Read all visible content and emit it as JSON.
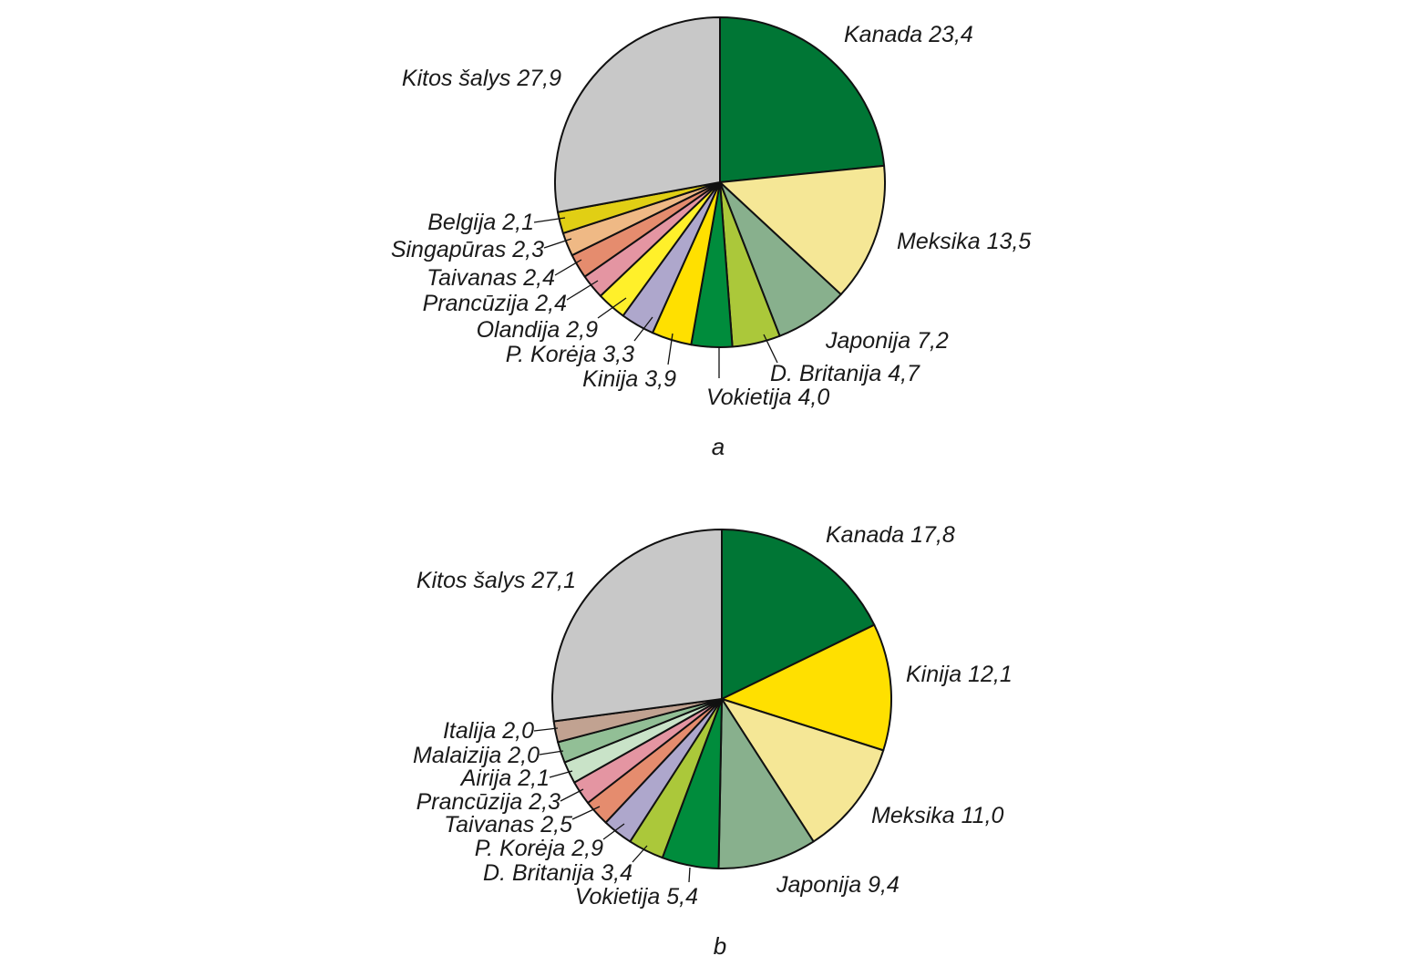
{
  "chart_data": [
    {
      "type": "pie",
      "caption": "a",
      "start": "12 o'clock",
      "direction": "clockwise",
      "slices": [
        {
          "name": "Kanada",
          "value": 23.4,
          "label": "Kanada 23,4",
          "color": "#007635"
        },
        {
          "name": "Meksika",
          "value": 13.5,
          "label": "Meksika 13,5",
          "color": "#f5e796"
        },
        {
          "name": "Japonija",
          "value": 7.2,
          "label": "Japonija 7,2",
          "color": "#88b08d"
        },
        {
          "name": "D. Britanija",
          "value": 4.7,
          "label": "D. Britanija 4,7",
          "color": "#abc83a"
        },
        {
          "name": "Vokietija",
          "value": 4.0,
          "label": "Vokietija 4,0",
          "color": "#008c3c"
        },
        {
          "name": "Kinija",
          "value": 3.9,
          "label": "Kinija 3,9",
          "color": "#ffe000"
        },
        {
          "name": "P. Korėja",
          "value": 3.3,
          "label": "P. Korėja 3,3",
          "color": "#aea7cc"
        },
        {
          "name": "Olandija",
          "value": 2.9,
          "label": "Olandija 2,9",
          "color": "#fff02a"
        },
        {
          "name": "Prancūzija",
          "value": 2.4,
          "label": "Prancūzija 2,4",
          "color": "#e495a2"
        },
        {
          "name": "Taivanas",
          "value": 2.4,
          "label": "Taivanas 2,4",
          "color": "#e58c6e"
        },
        {
          "name": "Singapūras",
          "value": 2.3,
          "label": "Singapūras 2,3",
          "color": "#efb985"
        },
        {
          "name": "Belgija",
          "value": 2.1,
          "label": "Belgija 2,1",
          "color": "#e1cf14"
        },
        {
          "name": "Kitos šalys",
          "value": 27.9,
          "label": "Kitos šalys 27,9",
          "color": "#c8c8c8"
        }
      ]
    },
    {
      "type": "pie",
      "caption": "b",
      "start": "12 o'clock",
      "direction": "clockwise",
      "slices": [
        {
          "name": "Kanada",
          "value": 17.8,
          "label": "Kanada 17,8",
          "color": "#007635"
        },
        {
          "name": "Kinija",
          "value": 12.1,
          "label": "Kinija 12,1",
          "color": "#ffe000"
        },
        {
          "name": "Meksika",
          "value": 11.0,
          "label": "Meksika 11,0",
          "color": "#f5e796"
        },
        {
          "name": "Japonija",
          "value": 9.4,
          "label": "Japonija 9,4",
          "color": "#88b08d"
        },
        {
          "name": "Vokietija",
          "value": 5.4,
          "label": "Vokietija 5,4",
          "color": "#008c3c"
        },
        {
          "name": "D. Britanija",
          "value": 3.4,
          "label": "D. Britanija 3,4",
          "color": "#abc83a"
        },
        {
          "name": "P. Korėja",
          "value": 2.9,
          "label": "P. Korėja 2,9",
          "color": "#aea7cc"
        },
        {
          "name": "Taivanas",
          "value": 2.5,
          "label": "Taivanas 2,5",
          "color": "#e58c6e"
        },
        {
          "name": "Prancūzija",
          "value": 2.3,
          "label": "Prancūzija 2,3",
          "color": "#e495a2"
        },
        {
          "name": "Airija",
          "value": 2.1,
          "label": "Airija 2,1",
          "color": "#c9e3c8"
        },
        {
          "name": "Malaizija",
          "value": 2.0,
          "label": "Malaizija 2,0",
          "color": "#92bf96"
        },
        {
          "name": "Italija",
          "value": 2.0,
          "label": "Italija 2,0",
          "color": "#c1a291"
        },
        {
          "name": "Kitos šalys",
          "value": 27.1,
          "label": "Kitos šalys 27,1",
          "color": "#c8c8c8"
        }
      ]
    }
  ]
}
